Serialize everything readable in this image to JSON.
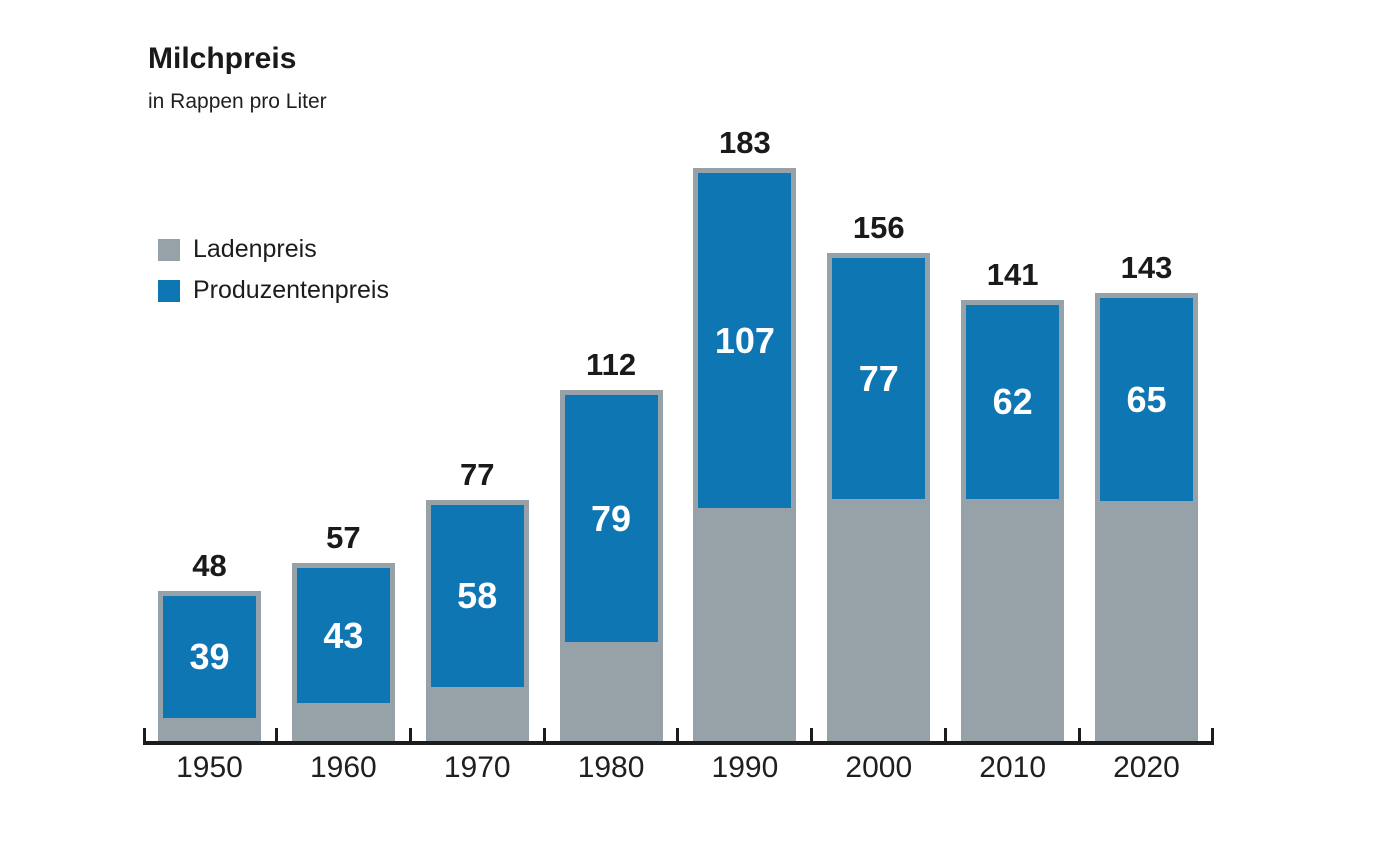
{
  "title": "Milchpreis",
  "subtitle": "in Rappen pro Liter",
  "legend": [
    {
      "label": "Ladenpreis",
      "color": "#97a1a8"
    },
    {
      "label": "Produzentenpreis",
      "color": "#0f76b4"
    }
  ],
  "colors": {
    "ladenpreis_gray": "#97a1a8",
    "produzentenpreis_blue": "#0f76b4",
    "text_dark": "#1a1a1a",
    "axis_dark": "#1c1c1c",
    "inner_label_white": "#ffffff",
    "background": "#ffffff"
  },
  "chart_data": {
    "type": "bar",
    "variant": "total-bar-with-inset-top-segment",
    "title": "Milchpreis",
    "subtitle": "in Rappen pro Liter",
    "unit": "Rappen pro Liter",
    "categories": [
      "1950",
      "1960",
      "1970",
      "1980",
      "1990",
      "2000",
      "2010",
      "2020"
    ],
    "series": [
      {
        "name": "Ladenpreis",
        "role": "total",
        "color": "#97a1a8",
        "values": [
          48,
          57,
          77,
          112,
          183,
          156,
          141,
          143
        ],
        "label_position": "above-bar",
        "label_color": "#1a1a1a"
      },
      {
        "name": "Produzentenpreis",
        "role": "inset-top",
        "color": "#0f76b4",
        "values": [
          39,
          43,
          58,
          79,
          107,
          77,
          62,
          65
        ],
        "label_position": "inside-center",
        "label_color": "#ffffff"
      }
    ],
    "ylim": [
      0,
      190
    ],
    "yaxis_visible": false,
    "grid": false,
    "legend_position": "upper-left",
    "xaxis": {
      "baseline_visible": true,
      "ticks_between_bars": true
    }
  }
}
